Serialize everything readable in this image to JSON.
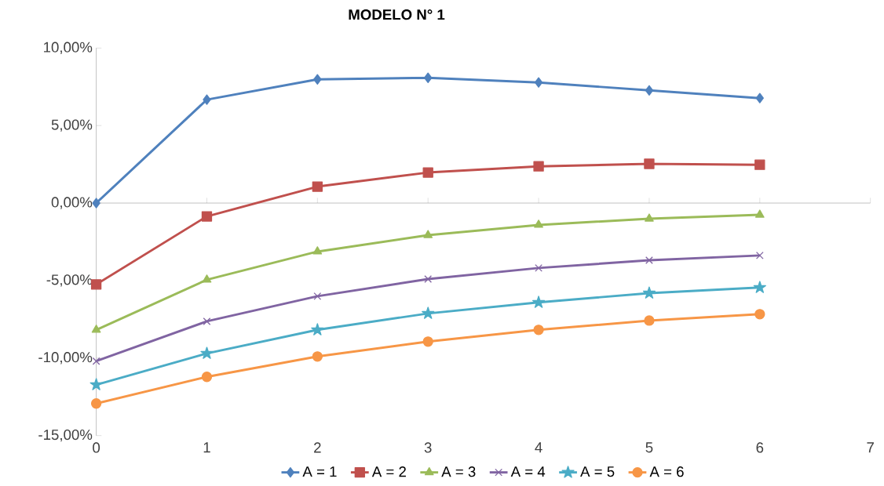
{
  "chart_data": {
    "type": "line",
    "title": "MODELO N° 1",
    "x": [
      0,
      1,
      2,
      3,
      4,
      5,
      6
    ],
    "series": [
      {
        "name": "A = 1",
        "color": "#4f81bd",
        "marker": "diamond",
        "values": [
          0,
          6.67,
          7.98,
          8.08,
          7.78,
          7.27,
          6.77
        ]
      },
      {
        "name": "A = 2",
        "color": "#c0504d",
        "marker": "square",
        "values": [
          -5.25,
          -0.86,
          1.06,
          1.97,
          2.37,
          2.53,
          2.47
        ]
      },
      {
        "name": "A = 3",
        "color": "#9bbb59",
        "marker": "triangle",
        "values": [
          -8.18,
          -4.95,
          -3.13,
          -2.07,
          -1.41,
          -1.01,
          -0.76
        ]
      },
      {
        "name": "A = 4",
        "color": "#8064a2",
        "marker": "cross",
        "values": [
          -10.2,
          -7.63,
          -6.01,
          -4.9,
          -4.19,
          -3.69,
          -3.38
        ]
      },
      {
        "name": "A = 5",
        "color": "#4bacc6",
        "marker": "star",
        "values": [
          -11.72,
          -9.7,
          -8.18,
          -7.12,
          -6.41,
          -5.81,
          -5.45
        ]
      },
      {
        "name": "A = 6",
        "color": "#f79646",
        "marker": "circle",
        "values": [
          -12.93,
          -11.21,
          -9.9,
          -8.94,
          -8.18,
          -7.58,
          -7.17
        ]
      }
    ],
    "xlim": [
      0,
      7
    ],
    "xticks": [
      0,
      1,
      2,
      3,
      4,
      5,
      6,
      7
    ],
    "ylim": [
      -15,
      10
    ],
    "yticks": [
      {
        "value": -15,
        "label": "-15,00%"
      },
      {
        "value": -10,
        "label": "-10,00%"
      },
      {
        "value": -5,
        "label": "-5,00%"
      },
      {
        "value": 0,
        "label": "0,00%"
      },
      {
        "value": 5,
        "label": "5,00%"
      },
      {
        "value": 10,
        "label": "10,00%"
      }
    ],
    "legend": "bottom",
    "line_style": "solid"
  }
}
